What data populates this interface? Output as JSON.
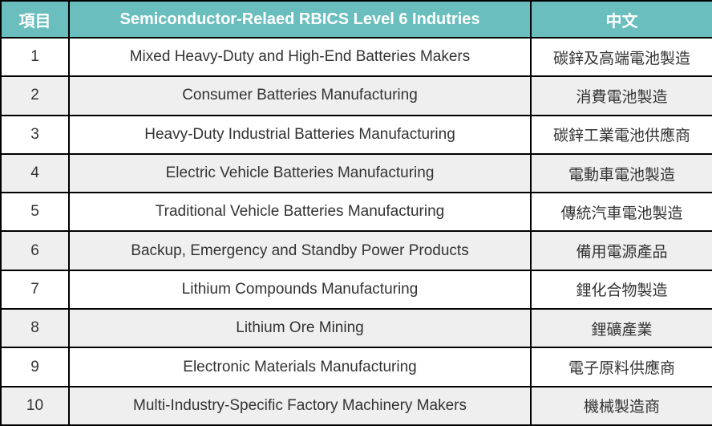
{
  "table": {
    "columns": {
      "item": {
        "label": "項目"
      },
      "industry": {
        "label": "Semiconductor-Relaed RBICS Level 6 Indutries"
      },
      "chinese": {
        "label": "中文"
      }
    },
    "rows": [
      {
        "item": "1",
        "industry": "Mixed Heavy-Duty and High-End Batteries Makers",
        "chinese": "碳鋅及高端電池製造"
      },
      {
        "item": "2",
        "industry": "Consumer Batteries Manufacturing",
        "chinese": "消費電池製造"
      },
      {
        "item": "3",
        "industry": "Heavy-Duty Industrial Batteries Manufacturing",
        "chinese": "碳鋅工業電池供應商"
      },
      {
        "item": "4",
        "industry": "Electric Vehicle Batteries Manufacturing",
        "chinese": "電動車電池製造"
      },
      {
        "item": "5",
        "industry": "Traditional Vehicle Batteries Manufacturing",
        "chinese": "傳統汽車電池製造"
      },
      {
        "item": "6",
        "industry": "Backup, Emergency and Standby Power Products",
        "chinese": "備用電源產品"
      },
      {
        "item": "7",
        "industry": "Lithium Compounds Manufacturing",
        "chinese": "鋰化合物製造"
      },
      {
        "item": "8",
        "industry": "Lithium Ore Mining",
        "chinese": "鋰礦產業"
      },
      {
        "item": "9",
        "industry": "Electronic Materials Manufacturing",
        "chinese": "電子原料供應商"
      },
      {
        "item": "10",
        "industry": "Multi-Industry-Specific Factory Machinery Makers",
        "chinese": "機械製造商"
      }
    ],
    "colors": {
      "header_bg": "#6BBEBE",
      "header_text": "#FFFFFF",
      "row_bg": "#FFFFFF",
      "row_alt_bg": "#EFEFEF",
      "border": "#000000",
      "text": "#333333"
    }
  }
}
